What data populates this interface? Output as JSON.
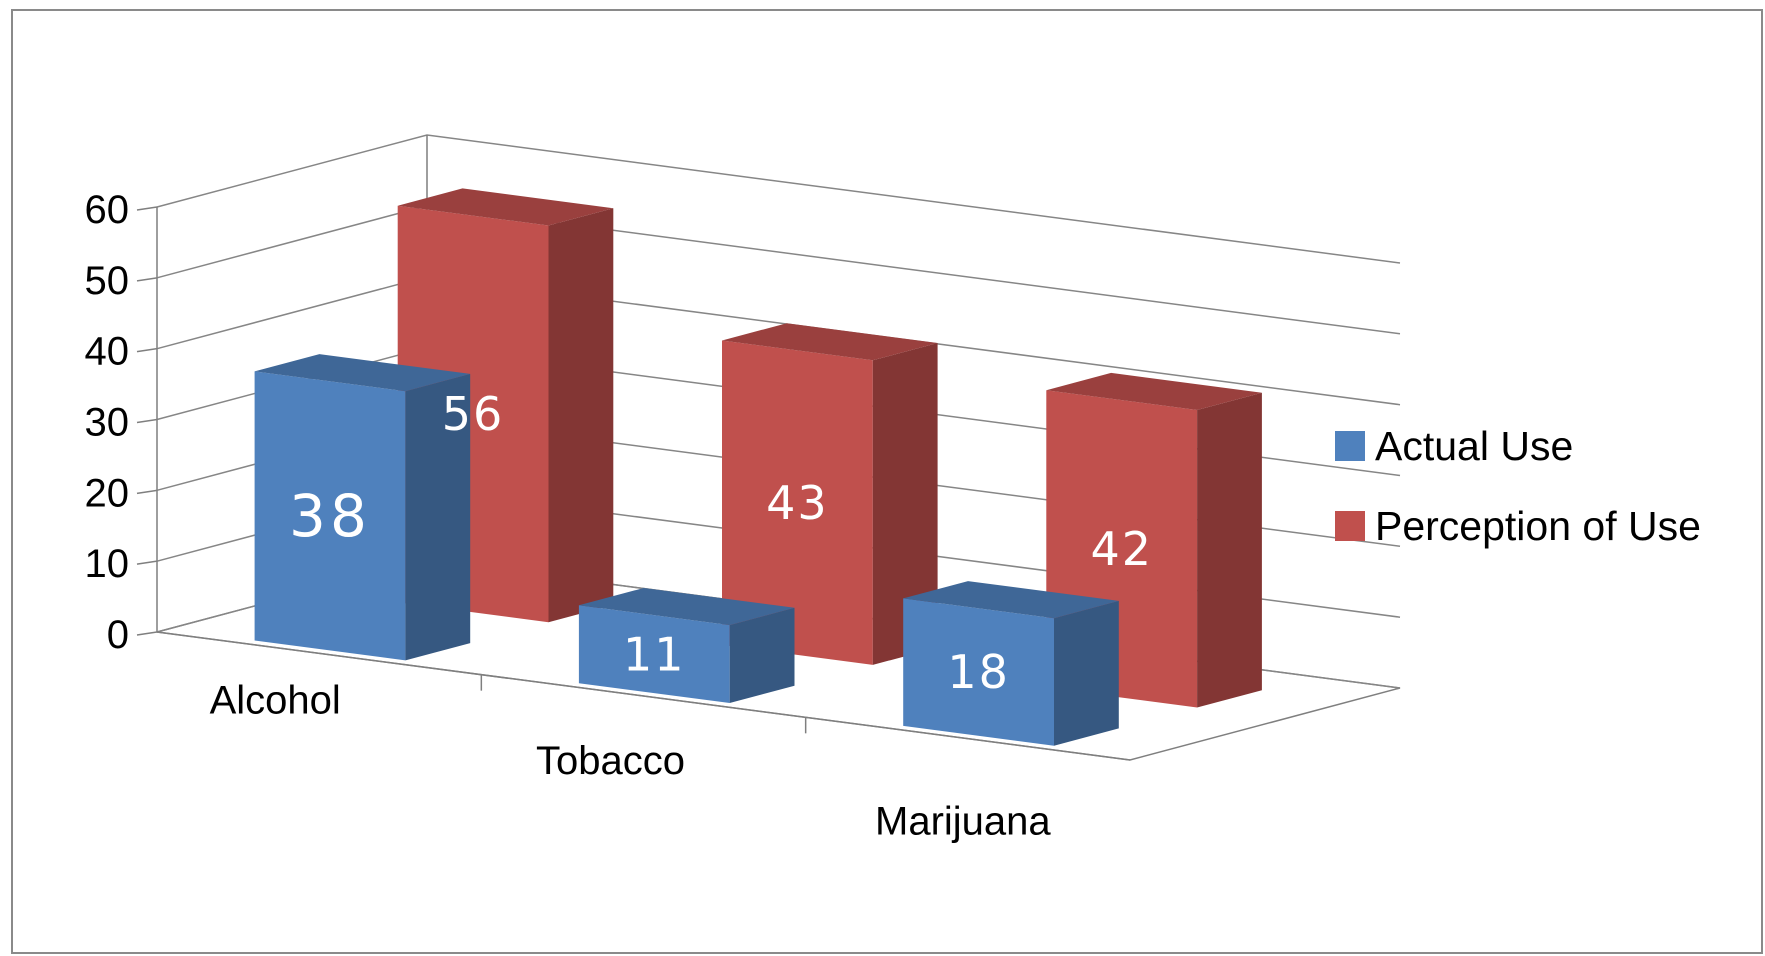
{
  "chart_data": {
    "type": "bar",
    "title": "",
    "categories": [
      "Alcohol",
      "Tobacco",
      "Marijuana"
    ],
    "series": [
      {
        "name": "Actual Use",
        "values": [
          38,
          11,
          18
        ],
        "color": "#4f81bd"
      },
      {
        "name": "Perception of Use",
        "values": [
          56,
          43,
          42
        ],
        "color": "#c0504d"
      }
    ],
    "ylim": [
      0,
      60
    ],
    "yticks": [
      "0",
      "10",
      "20",
      "30",
      "40",
      "50",
      "60"
    ],
    "xlabel": "",
    "ylabel": "",
    "grid": true,
    "legend_position": "right",
    "three_d": true
  }
}
